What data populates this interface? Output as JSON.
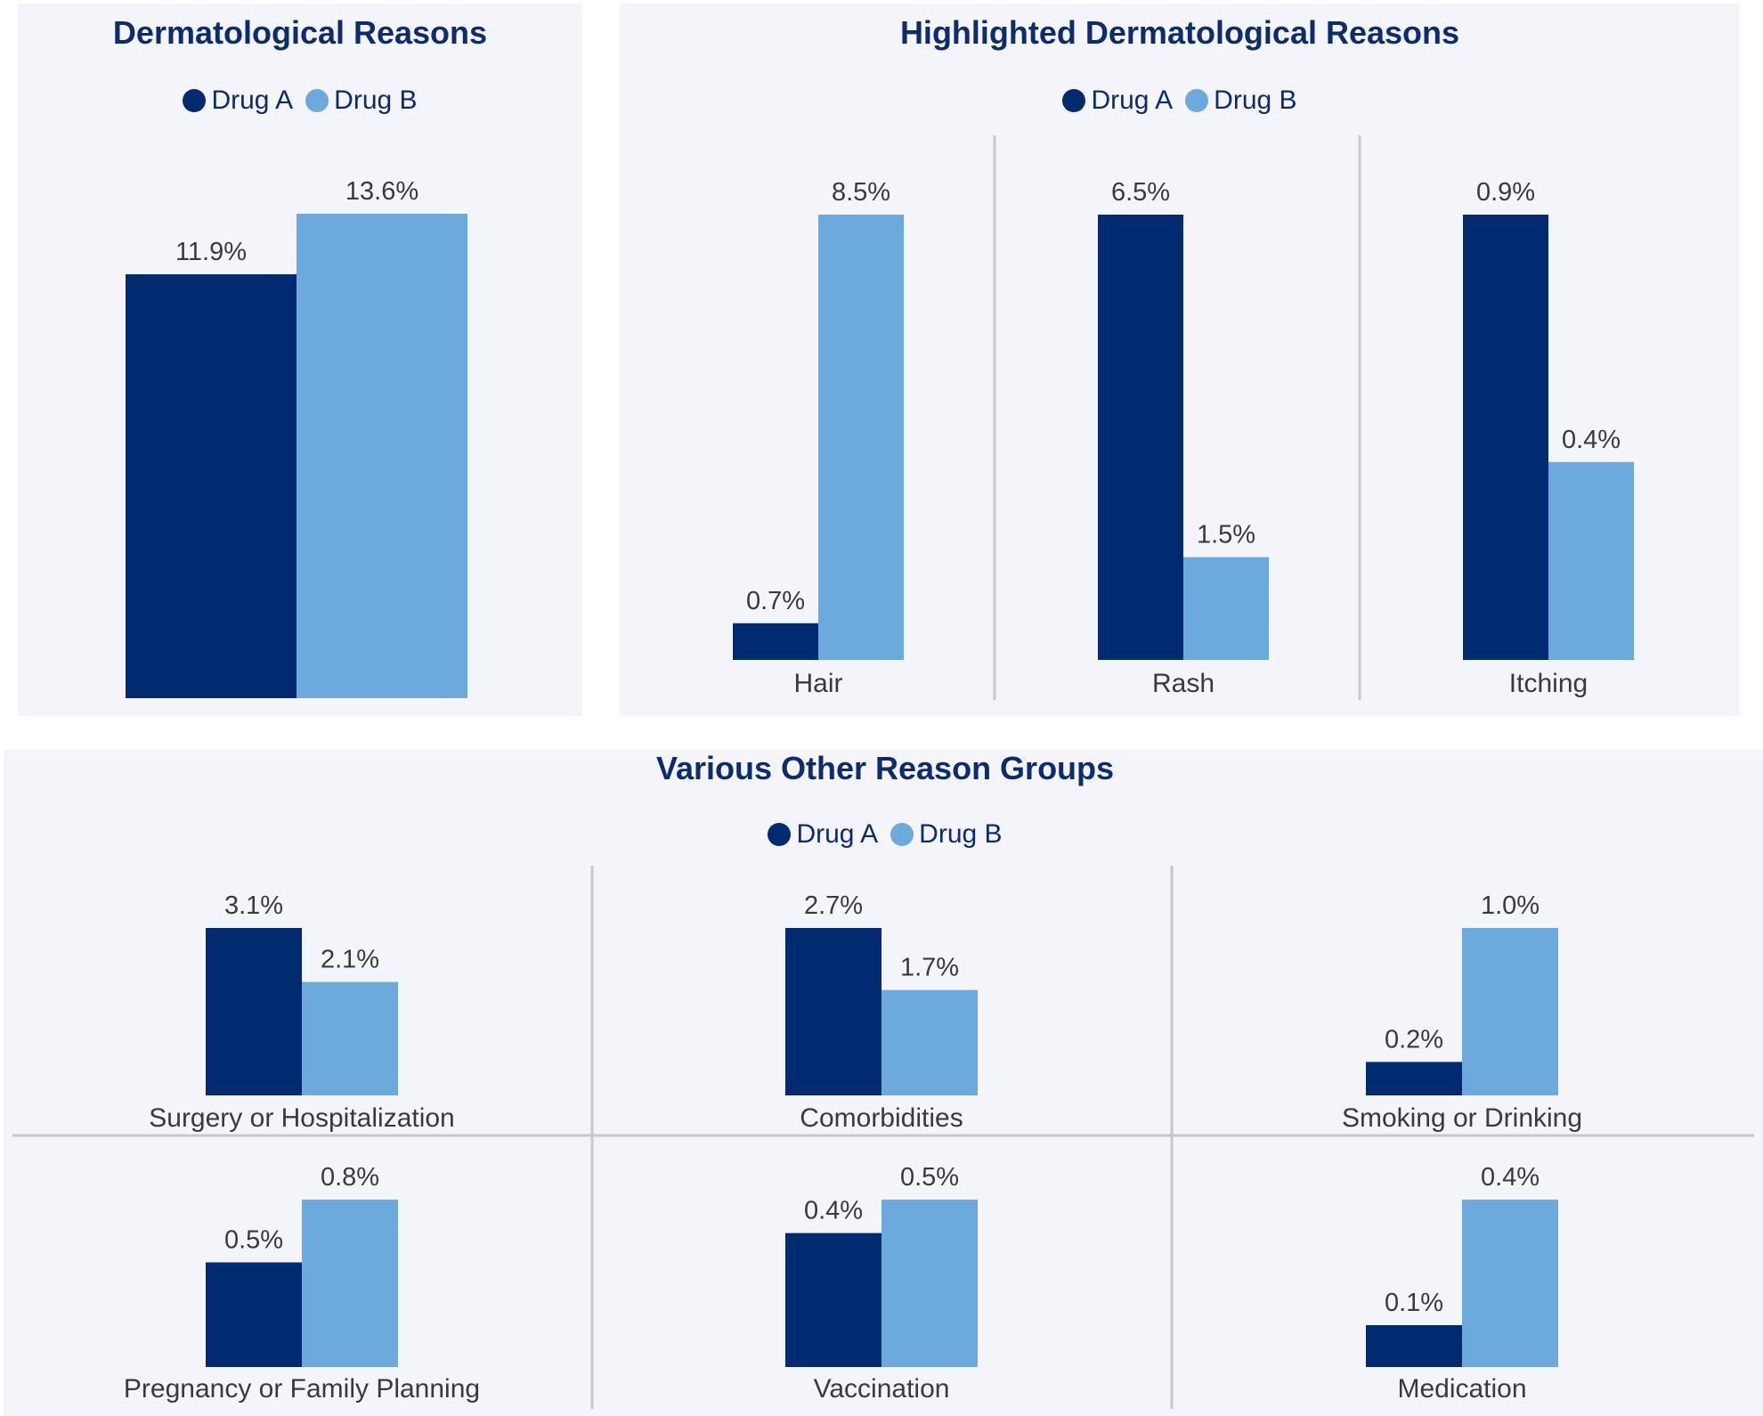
{
  "colors": {
    "drug_a": "#012b70",
    "drug_b": "#6ca9dc",
    "divider": "#c6c8cc"
  },
  "legend": {
    "drug_a": "Drug A",
    "drug_b": "Drug B"
  },
  "chart_data": [
    {
      "type": "bar",
      "title": "Dermatological Reasons",
      "categories": [
        ""
      ],
      "series": [
        {
          "name": "Drug A",
          "values": [
            11.9
          ],
          "labels": [
            "11.9%"
          ]
        },
        {
          "name": "Drug B",
          "values": [
            13.6
          ],
          "labels": [
            "13.6%"
          ]
        }
      ],
      "ylim": [
        0,
        16
      ],
      "legend": "top-center",
      "grid": false
    },
    {
      "type": "bar",
      "title": "Highlighted Dermatological Reasons",
      "categories": [
        "Hair",
        "Rash",
        "Itching"
      ],
      "series": [
        {
          "name": "Drug A",
          "values": [
            0.7,
            6.5,
            0.9
          ],
          "labels": [
            "0.7%",
            "6.5%",
            "0.9%"
          ]
        },
        {
          "name": "Drug B",
          "values": [
            8.5,
            1.5,
            0.4
          ],
          "labels": [
            "8.5%",
            "1.5%",
            "0.4%"
          ]
        }
      ],
      "legend": "top-center",
      "grid": false
    },
    {
      "type": "bar",
      "title": "Various Other Reason Groups",
      "categories": [
        "Surgery or Hospitalization",
        "Comorbidities",
        "Smoking or Drinking",
        "Pregnancy or Family Planning",
        "Vaccination",
        "Medication"
      ],
      "series": [
        {
          "name": "Drug A",
          "values": [
            3.1,
            2.7,
            0.2,
            0.5,
            0.4,
            0.1
          ],
          "labels": [
            "3.1%",
            "2.7%",
            "0.2%",
            "0.5%",
            "0.4%",
            "0.1%"
          ]
        },
        {
          "name": "Drug B",
          "values": [
            2.1,
            1.7,
            1.0,
            0.8,
            0.5,
            0.4
          ],
          "labels": [
            "2.1%",
            "1.7%",
            "1.0%",
            "0.8%",
            "0.5%",
            "0.4%"
          ]
        }
      ],
      "legend": "top-center",
      "grid": false
    }
  ]
}
